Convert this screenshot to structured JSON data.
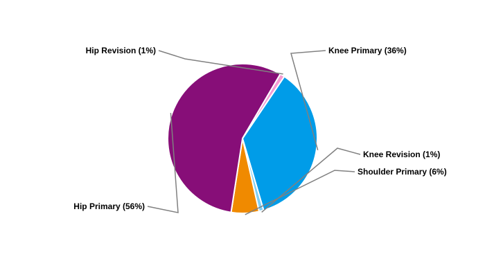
{
  "chart_data": {
    "type": "pie",
    "title": "",
    "slices": [
      {
        "label": "Knee Primary (36%)",
        "value": 36,
        "color": "#009ce8"
      },
      {
        "label": "Knee Revision (1%)",
        "value": 1,
        "color": "#7fd0f5"
      },
      {
        "label": "Shoulder Primary (6%)",
        "value": 6,
        "color": "#f08a00"
      },
      {
        "label": "Hip Primary (56%)",
        "value": 56,
        "color": "#870e78"
      },
      {
        "label": "Hip Revision (1%)",
        "value": 1,
        "color": "#f49ad4"
      }
    ],
    "legend": "none",
    "labels": "outside-with-leader-lines"
  }
}
